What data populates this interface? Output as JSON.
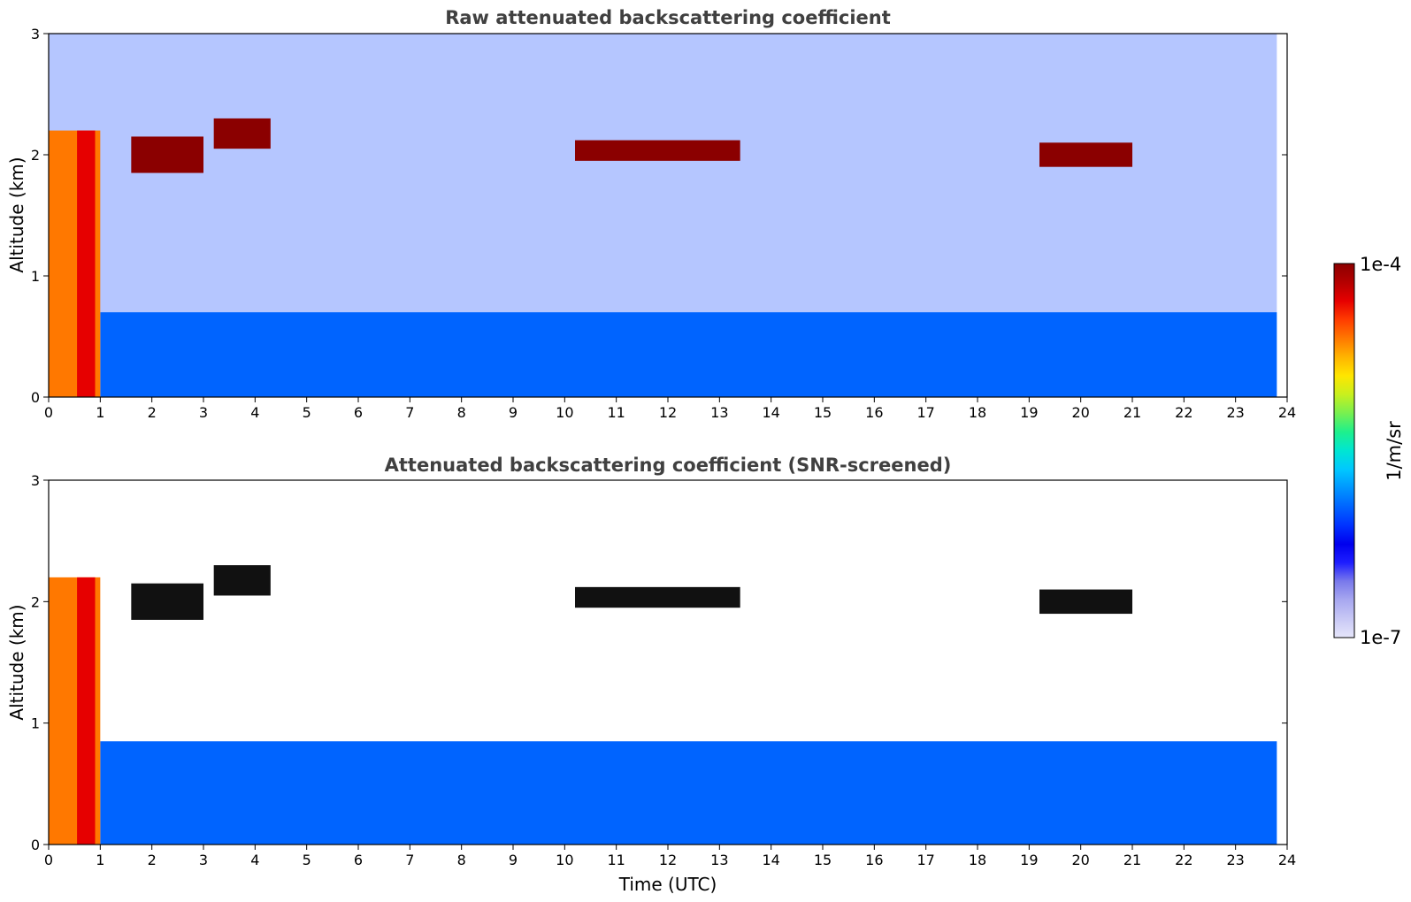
{
  "figure": {
    "colorbar": {
      "label": "1/m/sr",
      "max_label": "1e-4",
      "min_label": "1e-7",
      "scale": "log",
      "range": [
        1e-07,
        0.0001
      ],
      "colors": [
        "#e6e6fa",
        "#c8c8f5",
        "#a8a8f0",
        "#7a7aeb",
        "#1e1eff",
        "#0000ee",
        "#0032ff",
        "#0064ff",
        "#0096ff",
        "#00c8ff",
        "#00e6d2",
        "#1ef08c",
        "#78f050",
        "#c8f01e",
        "#ffe600",
        "#ffb400",
        "#ff7800",
        "#ff3c00",
        "#e60000",
        "#b40000",
        "#8b0000"
      ]
    },
    "xaxis": {
      "label": "Time (UTC)",
      "ticks": [
        "0",
        "1",
        "2",
        "3",
        "4",
        "5",
        "6",
        "7",
        "8",
        "9",
        "10",
        "11",
        "12",
        "13",
        "14",
        "15",
        "16",
        "17",
        "18",
        "19",
        "20",
        "21",
        "22",
        "23",
        "24"
      ]
    }
  },
  "chart_data": [
    {
      "type": "heatmap",
      "title": "Raw attenuated backscattering coefficient",
      "xlabel": "",
      "ylabel": "Altitude (km)",
      "xlim": [
        0,
        24
      ],
      "ylim": [
        0,
        3
      ],
      "yticks": [
        "0",
        "1",
        "2",
        "3"
      ],
      "features": [
        {
          "name": "noise-field",
          "x": [
            0,
            23.8
          ],
          "y": [
            0.7,
            3.0
          ],
          "level": "low-noisy"
        },
        {
          "name": "boundary-layer",
          "x": [
            1,
            23.8
          ],
          "y": [
            0,
            0.7
          ],
          "level": "low"
        },
        {
          "name": "early-plume",
          "x": [
            0,
            1
          ],
          "y": [
            0,
            2.2
          ],
          "level": "high"
        },
        {
          "name": "cloud-a",
          "x": [
            1.6,
            3.0
          ],
          "y": [
            1.85,
            2.15
          ],
          "level": "max"
        },
        {
          "name": "cloud-b",
          "x": [
            3.2,
            4.3
          ],
          "y": [
            2.05,
            2.3
          ],
          "level": "max"
        },
        {
          "name": "cloud-c",
          "x": [
            10.2,
            13.4
          ],
          "y": [
            1.95,
            2.12
          ],
          "level": "max"
        },
        {
          "name": "cloud-d",
          "x": [
            19.2,
            21.0
          ],
          "y": [
            1.9,
            2.1
          ],
          "level": "max"
        }
      ]
    },
    {
      "type": "heatmap",
      "title": "Attenuated backscattering coefficient (SNR-screened)",
      "xlabel": "Time (UTC)",
      "ylabel": "Altitude (km)",
      "xlim": [
        0,
        24
      ],
      "ylim": [
        0,
        3
      ],
      "yticks": [
        "0",
        "1",
        "2",
        "3"
      ],
      "features": [
        {
          "name": "boundary-layer",
          "x": [
            1,
            23.8
          ],
          "y": [
            0,
            0.85
          ],
          "level": "low"
        },
        {
          "name": "early-plume",
          "x": [
            0,
            1
          ],
          "y": [
            0,
            2.2
          ],
          "level": "high"
        },
        {
          "name": "cloud-a",
          "x": [
            1.6,
            3.0
          ],
          "y": [
            1.85,
            2.15
          ],
          "level": "saturated"
        },
        {
          "name": "cloud-b",
          "x": [
            3.2,
            4.3
          ],
          "y": [
            2.05,
            2.3
          ],
          "level": "saturated"
        },
        {
          "name": "cloud-c",
          "x": [
            10.2,
            13.4
          ],
          "y": [
            1.95,
            2.12
          ],
          "level": "saturated"
        },
        {
          "name": "cloud-d",
          "x": [
            19.2,
            21.0
          ],
          "y": [
            1.9,
            2.1
          ],
          "level": "saturated"
        }
      ]
    }
  ]
}
